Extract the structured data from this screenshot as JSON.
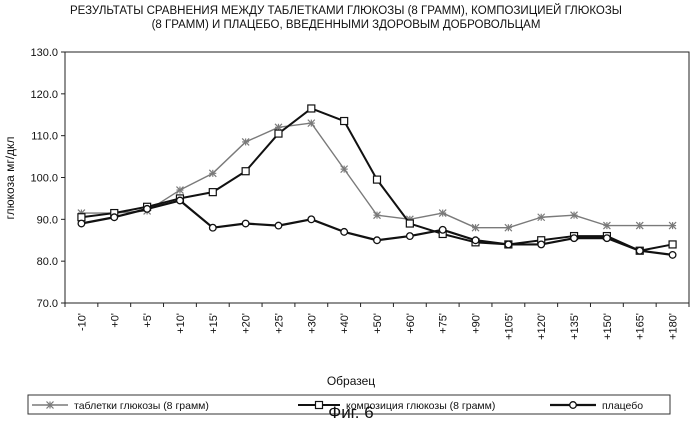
{
  "chart_data": {
    "type": "line",
    "title_lines": [
      "РЕЗУЛЬТАТЫ СРАВНЕНИЯ МЕЖДУ ТАБЛЕТКАМИ ГЛЮКОЗЫ (8 ГРАММ), КОМПОЗИЦИЕЙ ГЛЮКОЗЫ",
      "(8 ГРАММ) И ПЛАЦЕБО, ВВЕДЕННЫМИ ЗДОРОВЫМ ДОБРОВОЛЬЦАМ"
    ],
    "xlabel": "Образец",
    "ylabel": "глюкоза мг/дкл",
    "ylim": [
      70,
      130
    ],
    "yticks": [
      "70.0",
      "80.0",
      "90.0",
      "100.0",
      "110.0",
      "120.0",
      "130.0"
    ],
    "categories": [
      "-10'",
      "+0'",
      "+5'",
      "+10'",
      "+15'",
      "+20'",
      "+25'",
      "+30'",
      "+40'",
      "+50'",
      "+60'",
      "+75'",
      "+90'",
      "+105'",
      "+120'",
      "+135'",
      "+150'",
      "+165'",
      "+180'"
    ],
    "series": [
      {
        "name": "таблетки глюкозы (8 грамм)",
        "marker": "star",
        "color": "#7a7a7a",
        "values": [
          91.5,
          91.5,
          92.0,
          97.0,
          101.0,
          108.5,
          112.0,
          113.0,
          102.0,
          91.0,
          90.0,
          91.5,
          88.0,
          88.0,
          90.5,
          91.0,
          88.5,
          88.5,
          88.5
        ]
      },
      {
        "name": "композиция глюкозы (8 грамм)",
        "marker": "square",
        "color": "#111111",
        "values": [
          90.5,
          91.5,
          93.0,
          95.0,
          96.5,
          101.5,
          110.5,
          116.5,
          113.5,
          99.5,
          89.0,
          86.5,
          84.5,
          84.0,
          85.0,
          86.0,
          86.0,
          82.5,
          84.0
        ]
      },
      {
        "name": "плацебо",
        "marker": "circle",
        "color": "#111111",
        "values": [
          89.0,
          90.5,
          92.5,
          94.5,
          88.0,
          89.0,
          88.5,
          90.0,
          87.0,
          85.0,
          86.0,
          87.5,
          85.0,
          84.0,
          84.0,
          85.5,
          85.5,
          82.5,
          81.5
        ]
      }
    ],
    "grid": false,
    "legend_position": "bottom"
  },
  "caption": "Фиг. 6"
}
